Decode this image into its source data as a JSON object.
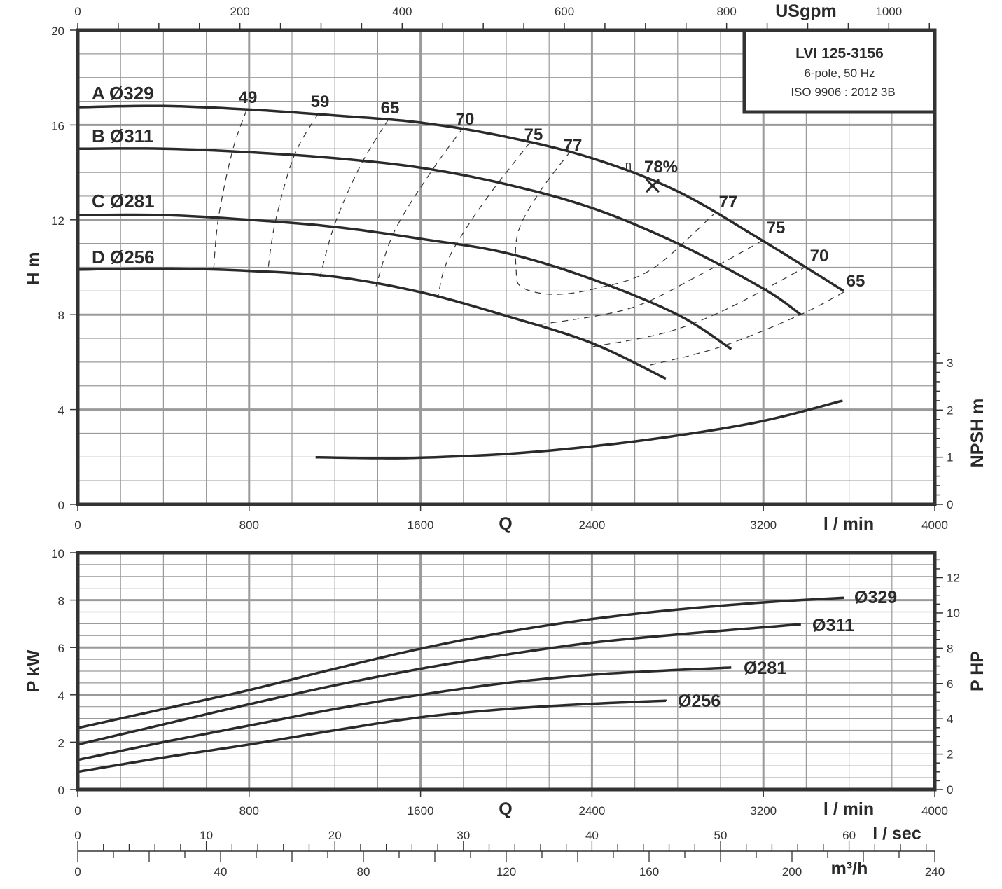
{
  "colors": {
    "curve": "#2a2a2a",
    "grid": "#9a9a9a",
    "frame": "#333333",
    "dashed": "#333333"
  },
  "info_box": {
    "title": "LVI 125-3156",
    "line2": "6-pole, 50 Hz",
    "line3": "ISO 9906 : 2012 3B"
  },
  "chart_data": [
    {
      "type": "line",
      "title": "",
      "xlabel": "Q",
      "xunit": "l / min",
      "xlim": [
        0,
        4000
      ],
      "xticks": [
        "0",
        "800",
        "1600",
        "2400",
        "3200",
        "4000"
      ],
      "top_axis": {
        "label": "USgpm",
        "ticks": [
          "0",
          "200",
          "400",
          "600",
          "800",
          "1000"
        ]
      },
      "ylabel": "H m",
      "ylim": [
        0,
        20
      ],
      "yticks": [
        "0",
        "4",
        "8",
        "12",
        "16",
        "20"
      ],
      "y2label": "NPSH m",
      "y2lim": [
        0,
        3
      ],
      "y2ticks": [
        "0",
        "1",
        "2",
        "3"
      ],
      "grid": true,
      "series": [
        {
          "name": "A Ø329",
          "x": [
            0,
            400,
            800,
            1200,
            1600,
            2000,
            2400,
            2800,
            3200,
            3575
          ],
          "y": [
            16.75,
            16.8,
            16.65,
            16.4,
            16.1,
            15.5,
            14.6,
            13.2,
            11.1,
            9.0
          ]
        },
        {
          "name": "B Ø311",
          "x": [
            0,
            400,
            800,
            1200,
            1600,
            2000,
            2400,
            2800,
            3200,
            3375
          ],
          "y": [
            15.0,
            15.0,
            14.85,
            14.6,
            14.2,
            13.5,
            12.5,
            11.0,
            9.1,
            8.0
          ]
        },
        {
          "name": "C Ø281",
          "x": [
            0,
            400,
            800,
            1200,
            1600,
            2000,
            2400,
            2800,
            3050
          ],
          "y": [
            12.2,
            12.2,
            12.0,
            11.7,
            11.2,
            10.6,
            9.5,
            8.0,
            6.55
          ]
        },
        {
          "name": "D Ø256",
          "x": [
            0,
            400,
            800,
            1200,
            1600,
            2000,
            2400,
            2745
          ],
          "y": [
            9.9,
            9.95,
            9.85,
            9.6,
            8.95,
            7.95,
            6.8,
            5.3
          ]
        }
      ],
      "npsh": {
        "x": [
          1110,
          1400,
          1600,
          2000,
          2400,
          2800,
          3200,
          3570
        ],
        "y": [
          1.0,
          0.98,
          0.99,
          1.07,
          1.23,
          1.46,
          1.77,
          2.2
        ]
      },
      "efficiency_contours": [
        {
          "label": "49",
          "x": [
            788,
            722,
            657,
            634
          ],
          "y": [
            16.63,
            14.9,
            12.1,
            9.9
          ]
        },
        {
          "label": "59",
          "x": [
            1124,
            1010,
            922,
            886
          ],
          "y": [
            16.5,
            14.7,
            11.9,
            9.75
          ]
        },
        {
          "label": "65",
          "x": [
            1451,
            1320,
            1199,
            1131
          ],
          "y": [
            16.25,
            14.3,
            11.8,
            9.6
          ]
        },
        {
          "label": "70",
          "x": [
            1800,
            1647,
            1477,
            1392
          ],
          "y": [
            15.9,
            14.0,
            11.5,
            9.2
          ]
        },
        {
          "label": "75",
          "x": [
            2111,
            1892,
            1729,
            1680
          ],
          "y": [
            15.27,
            12.7,
            10.34,
            8.7
          ]
        },
        {
          "label": "77",
          "x": [
            2300,
            2154,
            2056,
            2046,
            2072,
            2219,
            2415,
            2676,
            2971
          ],
          "y": [
            14.9,
            13.15,
            11.5,
            9.9,
            9.16,
            8.86,
            9.1,
            9.9,
            12.26
          ]
        },
        {
          "label": "75",
          "x": [
            3199,
            2905,
            2578,
            2163
          ],
          "y": [
            11.14,
            9.69,
            8.27,
            7.59
          ]
        },
        {
          "label": "70",
          "x": [
            3402,
            3036,
            2742,
            2405
          ],
          "y": [
            10.04,
            8.27,
            7.24,
            6.65
          ]
        },
        {
          "label": "65",
          "x": [
            3575,
            3373,
            3003,
            2660
          ],
          "y": [
            8.95,
            8.0,
            6.65,
            5.85
          ]
        }
      ],
      "bep": {
        "label_symbol": "η",
        "label": "78%",
        "x": 2683,
        "y": 13.44
      }
    },
    {
      "type": "line",
      "title": "",
      "xlabel": "Q",
      "xunit": "l / min",
      "xlim": [
        0,
        4000
      ],
      "xticks": [
        "0",
        "800",
        "1600",
        "2400",
        "3200",
        "4000"
      ],
      "ylabel": "P kW",
      "ylim": [
        0,
        10
      ],
      "yticks": [
        "0",
        "2",
        "4",
        "6",
        "8",
        "10"
      ],
      "y2label": "P HP",
      "y2lim": [
        0,
        13.41
      ],
      "y2ticks": [
        "0",
        "2",
        "4",
        "6",
        "8",
        "10",
        "12"
      ],
      "grid": true,
      "series": [
        {
          "name": "Ø329",
          "x": [
            0,
            400,
            800,
            1200,
            1600,
            2000,
            2400,
            2800,
            3200,
            3575
          ],
          "y": [
            2.6,
            3.4,
            4.2,
            5.1,
            5.95,
            6.65,
            7.2,
            7.6,
            7.9,
            8.1
          ]
        },
        {
          "name": "Ø311",
          "x": [
            0,
            400,
            800,
            1200,
            1600,
            2000,
            2400,
            2800,
            3200,
            3375
          ],
          "y": [
            1.9,
            2.75,
            3.6,
            4.4,
            5.1,
            5.7,
            6.2,
            6.55,
            6.85,
            6.98
          ]
        },
        {
          "name": "Ø281",
          "x": [
            0,
            400,
            800,
            1200,
            1600,
            2000,
            2400,
            2800,
            3050
          ],
          "y": [
            1.25,
            2.0,
            2.7,
            3.4,
            4.0,
            4.5,
            4.85,
            5.05,
            5.15
          ]
        },
        {
          "name": "Ø256",
          "x": [
            0,
            400,
            800,
            1200,
            1600,
            2000,
            2400,
            2745
          ],
          "y": [
            0.75,
            1.35,
            1.9,
            2.5,
            3.05,
            3.4,
            3.62,
            3.75
          ]
        }
      ],
      "lsec_axis": {
        "label": "l / sec",
        "ticks": [
          "0",
          "10",
          "20",
          "30",
          "40",
          "50",
          "60"
        ]
      },
      "m3h_axis": {
        "label": "m³/h",
        "ticks": [
          "0",
          "40",
          "80",
          "120",
          "160",
          "200",
          "240"
        ]
      }
    }
  ]
}
